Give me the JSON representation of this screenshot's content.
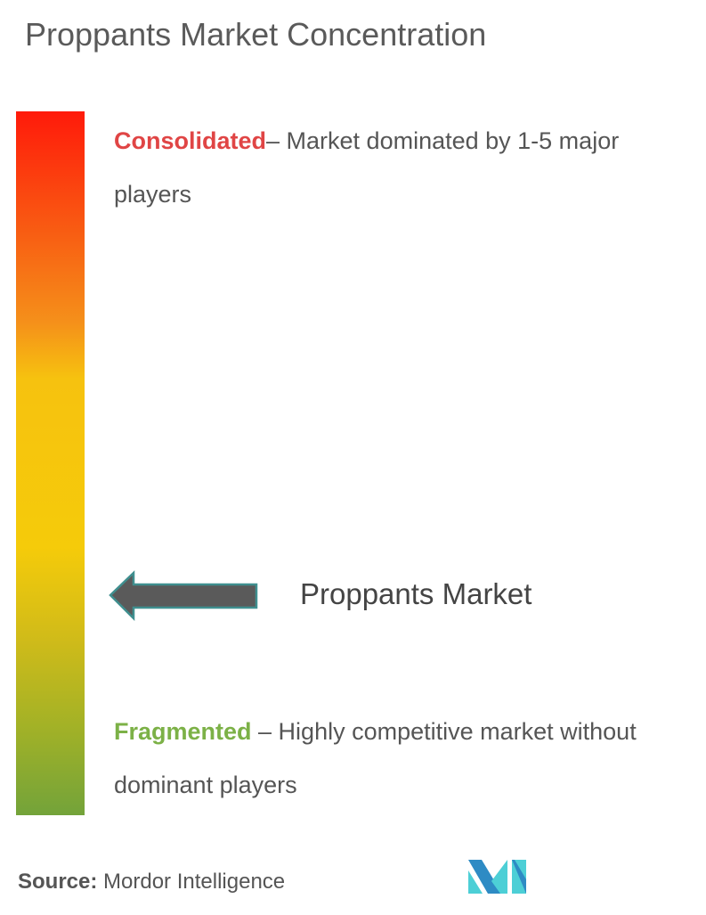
{
  "title": "Proppants Market Concentration",
  "consolidated": {
    "label": "Consolidated",
    "text": "– Market dominated by 1-5 major players",
    "color": "#e04545"
  },
  "fragmented": {
    "label": "Fragmented",
    "text": " – Highly competitive market without dominant players",
    "color": "#7cb147"
  },
  "marker": {
    "label": "Proppants Market",
    "icon": "left-arrow-icon",
    "level": "fragmented side, about 30% up the scale"
  },
  "source": {
    "label": "Source:",
    "text": " Mordor Intelligence"
  },
  "logo": {
    "icon": "mordor-intelligence-logo"
  }
}
